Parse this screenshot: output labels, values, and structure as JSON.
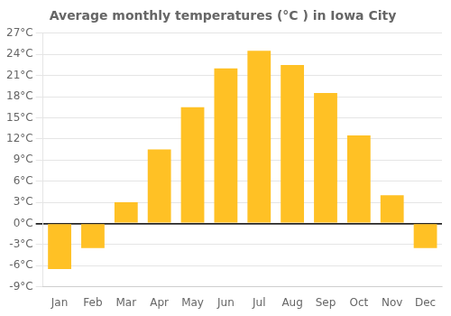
{
  "chart_data": {
    "type": "bar",
    "title": "Average monthly temperatures (°C ) in Iowa City",
    "categories": [
      "Jan",
      "Feb",
      "Mar",
      "Apr",
      "May",
      "Jun",
      "Jul",
      "Aug",
      "Sep",
      "Oct",
      "Nov",
      "Dec"
    ],
    "values": [
      -6.5,
      -3.5,
      3.0,
      10.5,
      16.5,
      22.0,
      24.5,
      22.5,
      18.5,
      12.5,
      4.0,
      -3.5
    ],
    "color": "#FFC125",
    "ylim": [
      -9,
      27
    ],
    "yticks": [
      {
        "value": -9,
        "label": "-9°C"
      },
      {
        "value": -6,
        "label": "-6°C"
      },
      {
        "value": -3,
        "label": "-3°C"
      },
      {
        "value": 0,
        "label": "0°C"
      },
      {
        "value": 3,
        "label": "3°C"
      },
      {
        "value": 6,
        "label": "6°C"
      },
      {
        "value": 9,
        "label": "9°C"
      },
      {
        "value": 12,
        "label": "12°C"
      },
      {
        "value": 15,
        "label": "15°C"
      },
      {
        "value": 18,
        "label": "18°C"
      },
      {
        "value": 21,
        "label": "21°C"
      },
      {
        "value": 24,
        "label": "24°C"
      },
      {
        "value": 27,
        "label": "27°C"
      }
    ],
    "grid": true
  }
}
